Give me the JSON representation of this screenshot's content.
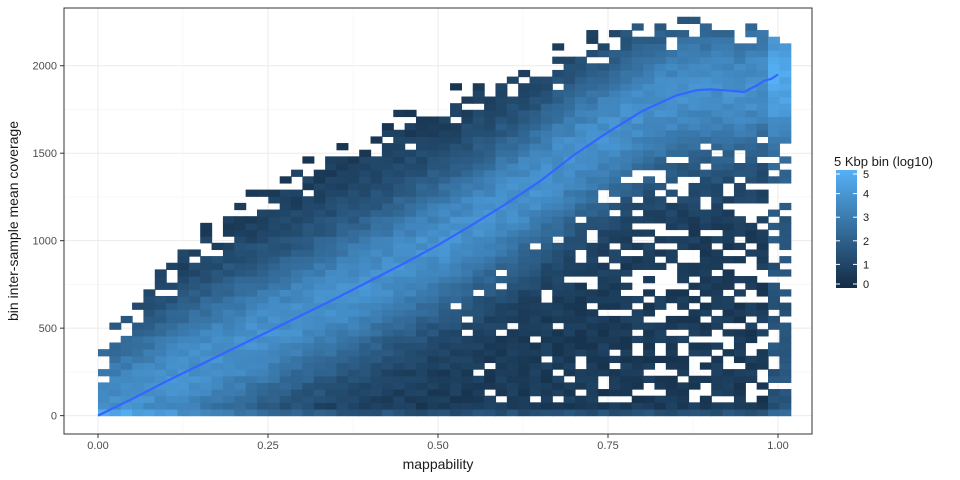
{
  "chart_data": {
    "type": "heatmap",
    "title": "",
    "xlabel": "mappability",
    "ylabel": "bin inter-sample mean coverage",
    "xlim": [
      -0.05,
      1.05
    ],
    "ylim": [
      -105,
      2330
    ],
    "x_ticks": [
      0.0,
      0.25,
      0.5,
      0.75,
      1.0
    ],
    "x_tick_labels": [
      "0.00",
      "0.25",
      "0.50",
      "0.75",
      "1.00"
    ],
    "y_ticks": [
      0,
      500,
      1000,
      1500,
      2000
    ],
    "y_tick_labels": [
      "0",
      "500",
      "1000",
      "1500",
      "2000"
    ],
    "grid": true,
    "bin_width_x": 0.0167,
    "bin_height_y": 38,
    "legend": {
      "title": "5 Kbp bin (log10)",
      "position": "right",
      "min": 0,
      "max": 5,
      "breaks": [
        0,
        1,
        2,
        3,
        4,
        5
      ],
      "break_labels": [
        "0",
        "1",
        "2",
        "3",
        "4",
        "5"
      ],
      "color_low": "#132B43",
      "color_high": "#56B1F7"
    },
    "smooth_line": {
      "color": "#3366FF",
      "x": [
        0.0,
        0.05,
        0.1,
        0.15,
        0.2,
        0.25,
        0.3,
        0.35,
        0.4,
        0.45,
        0.5,
        0.55,
        0.6,
        0.65,
        0.7,
        0.75,
        0.8,
        0.85,
        0.88,
        0.9,
        0.92,
        0.95,
        0.97,
        0.98,
        0.99,
        1.0
      ],
      "y": [
        0,
        95,
        195,
        290,
        385,
        480,
        575,
        670,
        770,
        870,
        975,
        1090,
        1210,
        1340,
        1490,
        1620,
        1740,
        1830,
        1860,
        1865,
        1860,
        1850,
        1890,
        1915,
        1925,
        1950
      ]
    }
  }
}
